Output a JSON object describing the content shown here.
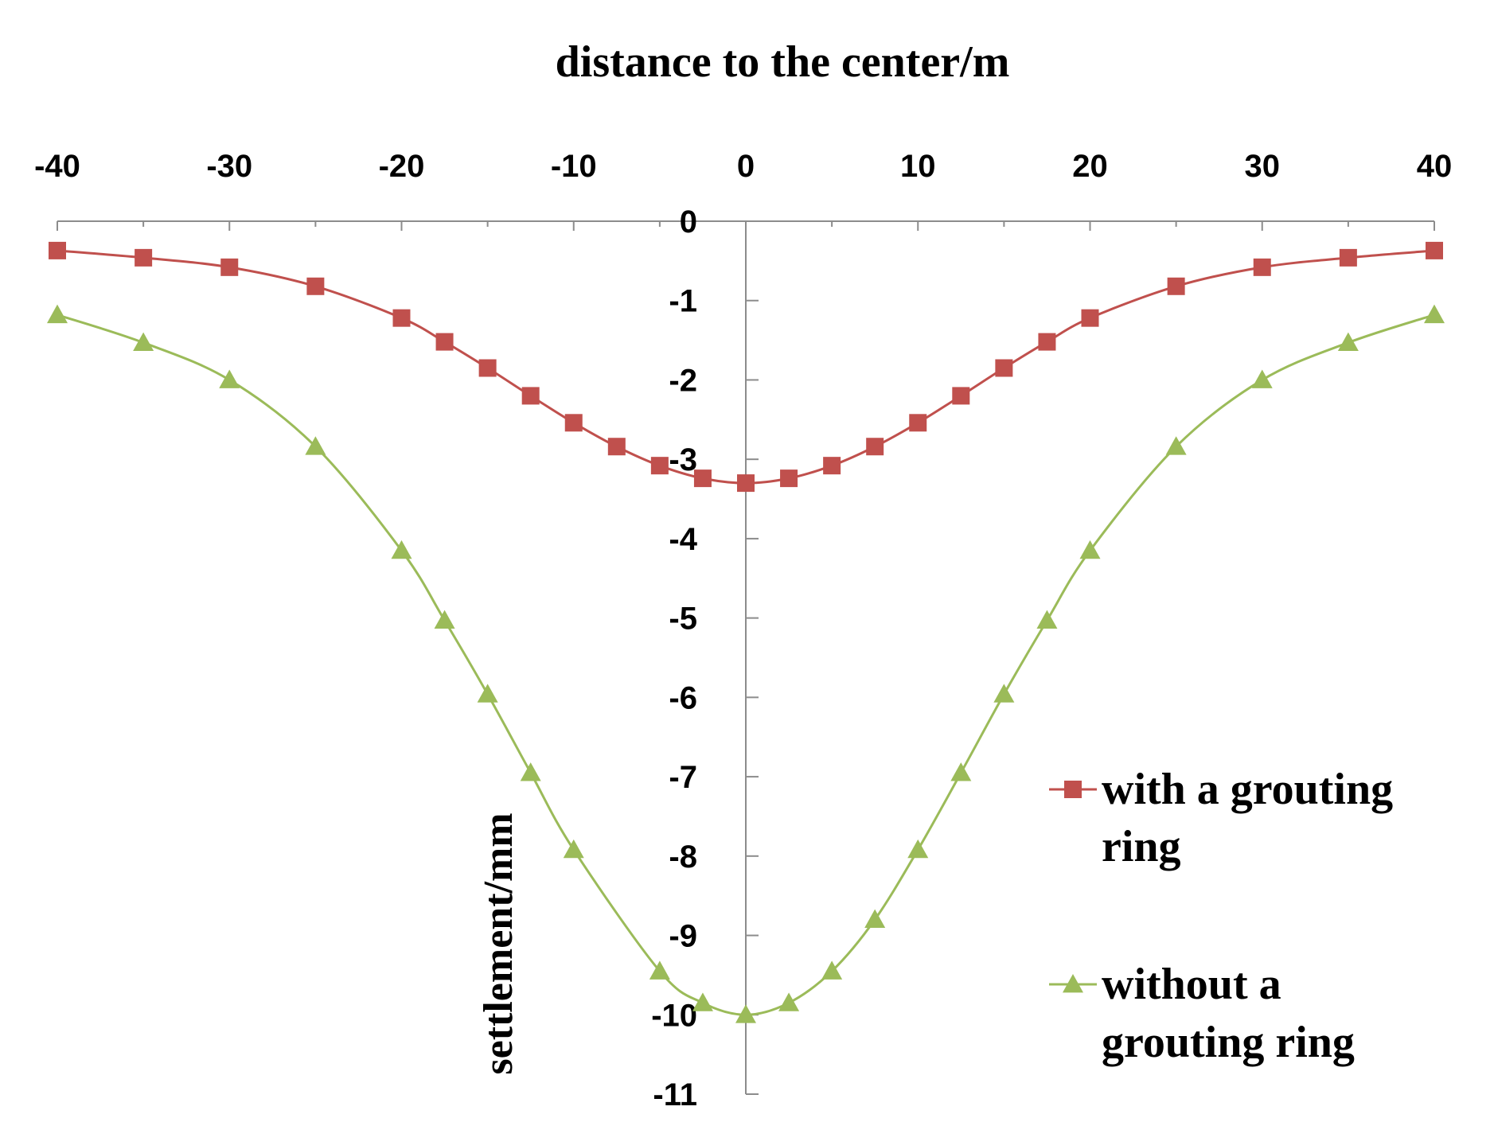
{
  "chart_data": {
    "type": "line",
    "title": "distance to the center/m",
    "xlabel": "distance to the center/m",
    "ylabel": "settlement/mm",
    "xlim": [
      -40,
      40
    ],
    "ylim": [
      -11,
      0
    ],
    "x_ticks": [
      -40,
      -30,
      -20,
      -10,
      0,
      10,
      20,
      30,
      40
    ],
    "y_ticks": [
      0,
      -1,
      -2,
      -3,
      -4,
      -5,
      -6,
      -7,
      -8,
      -9,
      -10,
      -11
    ],
    "x_axis_position": "top",
    "grid": false,
    "legend_position": "bottom-right",
    "x": [
      -40,
      -35,
      -30,
      -25,
      -20,
      -17.5,
      -15,
      -12.5,
      -10,
      -7.5,
      -5,
      -2.5,
      0,
      2.5,
      5,
      7.5,
      10,
      12.5,
      15,
      17.5,
      20,
      25,
      30,
      35,
      40
    ],
    "series": [
      {
        "name": "with a grouting ring",
        "legend_lines": [
          "with a grouting",
          "ring"
        ],
        "marker": "square",
        "color": "#c0504d",
        "x": [
          -40,
          -35,
          -30,
          -25,
          -20,
          -17.5,
          -15,
          -12.5,
          -10,
          -7.5,
          -5,
          -2.5,
          0,
          2.5,
          5,
          7.5,
          10,
          12.5,
          15,
          17.5,
          20,
          25,
          30,
          35,
          40
        ],
        "values": [
          -0.37,
          -0.46,
          -0.58,
          -0.82,
          -1.22,
          -1.52,
          -1.85,
          -2.2,
          -2.54,
          -2.84,
          -3.08,
          -3.24,
          -3.3,
          -3.24,
          -3.08,
          -2.84,
          -2.54,
          -2.2,
          -1.85,
          -1.52,
          -1.22,
          -0.82,
          -0.58,
          -0.46,
          -0.37
        ]
      },
      {
        "name": "without a grouting ring",
        "legend_lines": [
          "without a",
          "grouting ring"
        ],
        "marker": "triangle",
        "color": "#9bbb59",
        "x": [
          -40,
          -35,
          -30,
          -25,
          -20,
          -17.5,
          -15,
          -12.5,
          -10,
          -5,
          -2.5,
          0,
          2.5,
          5,
          7.5,
          10,
          12.5,
          15,
          17.5,
          20,
          25,
          30,
          35,
          40
        ],
        "values": [
          -1.18,
          -1.53,
          -2.0,
          -2.84,
          -4.15,
          -5.03,
          -5.96,
          -6.95,
          -7.92,
          -9.45,
          -9.85,
          -10.0,
          -9.85,
          -9.45,
          -8.8,
          -7.92,
          -6.95,
          -5.96,
          -5.03,
          -4.15,
          -2.84,
          -2.0,
          -1.53,
          -1.18
        ]
      }
    ]
  }
}
